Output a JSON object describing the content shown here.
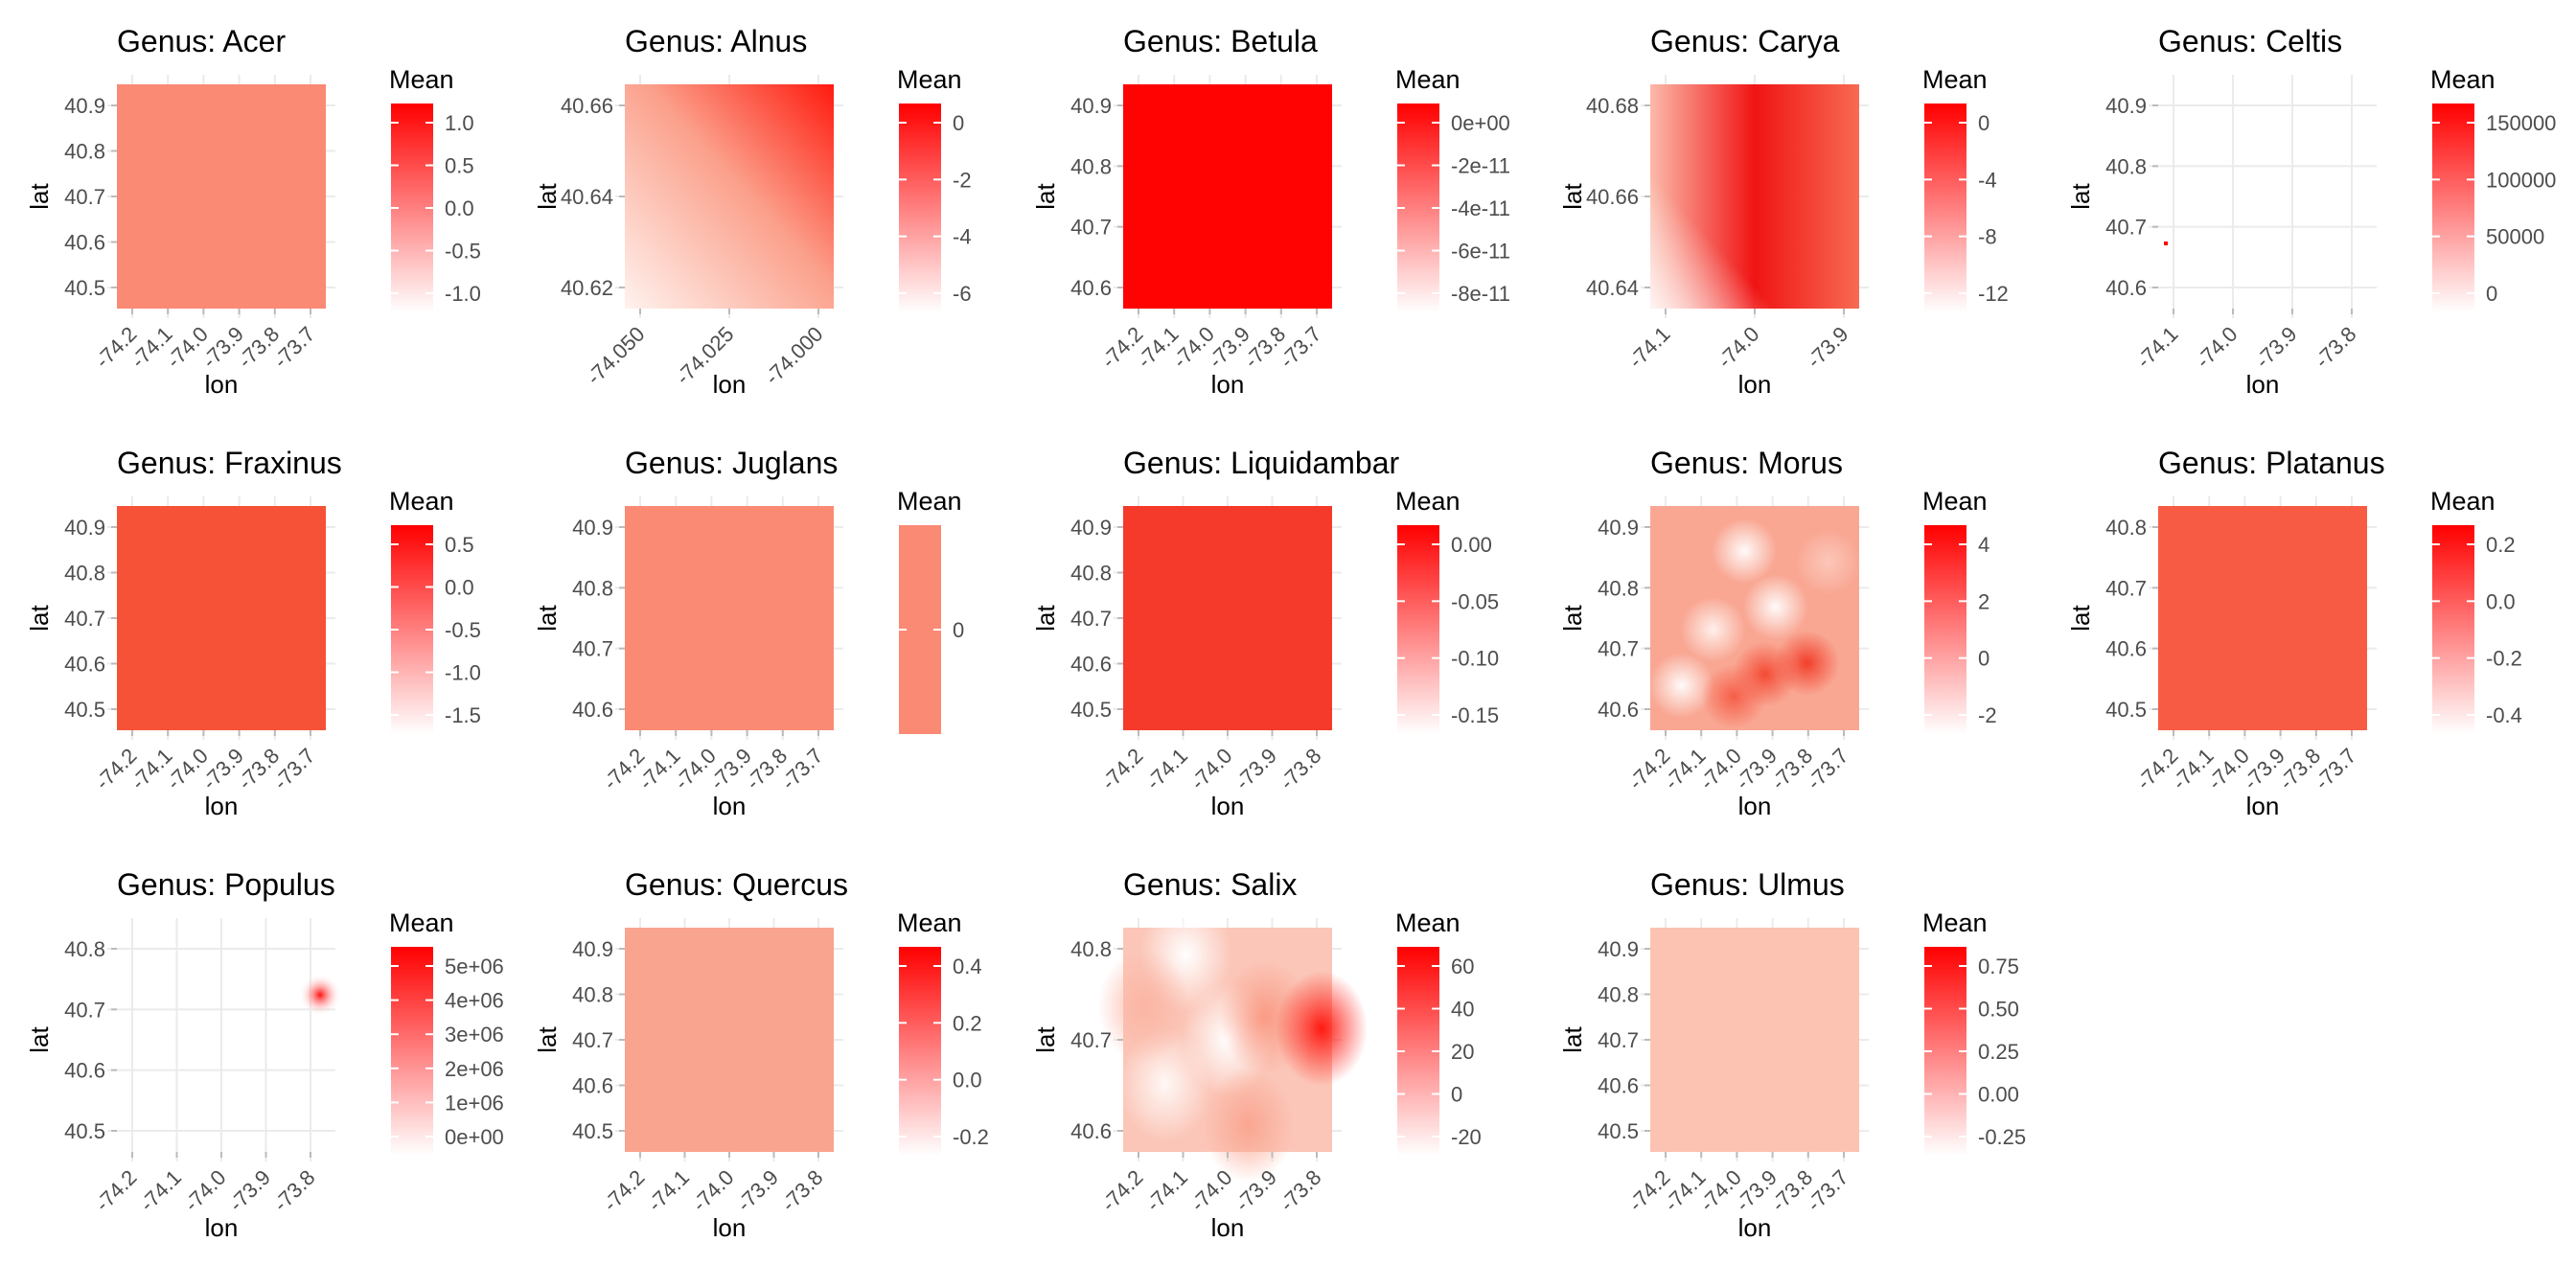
{
  "figure": {
    "ncol": 5,
    "nrow": 3
  },
  "chart_data": [
    {
      "type": "heatmap",
      "title": "Genus: Acer",
      "xlabel": "lon",
      "ylabel": "lat",
      "x_ticks": [
        "-74.2",
        "-74.1",
        "-74.0",
        "-73.9",
        "-73.8",
        "-73.7"
      ],
      "y_ticks": [
        "40.5",
        "40.6",
        "40.7",
        "40.8",
        "40.9"
      ],
      "legend": {
        "title": "Mean",
        "ticks": [
          "1.0",
          "0.5",
          "0.0",
          "-0.5",
          "-1.0"
        ],
        "low_color": "#FFFFFF",
        "high_color": "#FF0000"
      },
      "fill": {
        "kind": "uniform",
        "color": "#FA8A74"
      }
    },
    {
      "type": "heatmap",
      "title": "Genus: Alnus",
      "xlabel": "lon",
      "ylabel": "lat",
      "x_ticks": [
        "-74.050",
        "-74.025",
        "-74.000"
      ],
      "y_ticks": [
        "40.62",
        "40.64",
        "40.66"
      ],
      "legend": {
        "title": "Mean",
        "ticks": [
          "0",
          "-2",
          "-4",
          "-6"
        ],
        "low_color": "#FFFFFF",
        "high_color": "#FF0000"
      },
      "fill": {
        "kind": "diagonal",
        "low_color": "#FFF2EE",
        "high_color": "#FF1A0E"
      }
    },
    {
      "type": "heatmap",
      "title": "Genus: Betula",
      "xlabel": "lon",
      "ylabel": "lat",
      "x_ticks": [
        "-74.2",
        "-74.1",
        "-74.0",
        "-73.9",
        "-73.8",
        "-73.7"
      ],
      "y_ticks": [
        "40.6",
        "40.7",
        "40.8",
        "40.9"
      ],
      "legend": {
        "title": "Mean",
        "ticks": [
          "0e+00",
          "-2e-11",
          "-4e-11",
          "-6e-11",
          "-8e-11"
        ],
        "low_color": "#FFFFFF",
        "high_color": "#FF0000"
      },
      "fill": {
        "kind": "uniform",
        "color": "#FF0303"
      }
    },
    {
      "type": "heatmap",
      "title": "Genus: Carya",
      "xlabel": "lon",
      "ylabel": "lat",
      "x_ticks": [
        "-74.1",
        "-74.0",
        "-73.9"
      ],
      "y_ticks": [
        "40.64",
        "40.66",
        "40.68"
      ],
      "legend": {
        "title": "Mean",
        "ticks": [
          "0",
          "-4",
          "-8",
          "-12"
        ],
        "low_color": "#FFFFFF",
        "high_color": "#FF0000"
      },
      "fill": {
        "kind": "ridge",
        "low_color": "#FBBAAA",
        "high_color": "#F01414"
      }
    },
    {
      "type": "heatmap",
      "title": "Genus: Celtis",
      "xlabel": "lon",
      "ylabel": "lat",
      "x_ticks": [
        "-74.1",
        "-74.0",
        "-73.9",
        "-73.8"
      ],
      "y_ticks": [
        "40.6",
        "40.7",
        "40.8",
        "40.9"
      ],
      "legend": {
        "title": "Mean",
        "ticks": [
          "150000",
          "100000",
          "50000",
          "0"
        ],
        "low_color": "#FFFFFF",
        "high_color": "#FF0000"
      },
      "fill": {
        "kind": "empty",
        "color": "#FFFFFF"
      }
    },
    {
      "type": "heatmap",
      "title": "Genus: Fraxinus",
      "xlabel": "lon",
      "ylabel": "lat",
      "x_ticks": [
        "-74.2",
        "-74.1",
        "-74.0",
        "-73.9",
        "-73.8",
        "-73.7"
      ],
      "y_ticks": [
        "40.5",
        "40.6",
        "40.7",
        "40.8",
        "40.9"
      ],
      "legend": {
        "title": "Mean",
        "ticks": [
          "0.5",
          "0.0",
          "-0.5",
          "-1.0",
          "-1.5"
        ],
        "low_color": "#FFFFFF",
        "high_color": "#FF0000"
      },
      "fill": {
        "kind": "uniform",
        "color": "#F65238"
      }
    },
    {
      "type": "heatmap",
      "title": "Genus: Juglans",
      "xlabel": "lon",
      "ylabel": "lat",
      "x_ticks": [
        "-74.2",
        "-74.1",
        "-74.0",
        "-73.9",
        "-73.8",
        "-73.7"
      ],
      "y_ticks": [
        "40.6",
        "40.7",
        "40.8",
        "40.9"
      ],
      "legend": {
        "title": "Mean",
        "ticks": [
          "0"
        ],
        "low_color": "#FA8A74",
        "high_color": "#FA8A74"
      },
      "fill": {
        "kind": "uniform",
        "color": "#FA8A74"
      }
    },
    {
      "type": "heatmap",
      "title": "Genus: Liquidambar",
      "xlabel": "lon",
      "ylabel": "lat",
      "x_ticks": [
        "-74.2",
        "-74.1",
        "-74.0",
        "-73.9",
        "-73.8"
      ],
      "y_ticks": [
        "40.5",
        "40.6",
        "40.7",
        "40.8",
        "40.9"
      ],
      "legend": {
        "title": "Mean",
        "ticks": [
          "0.00",
          "-0.05",
          "-0.10",
          "-0.15"
        ],
        "low_color": "#FFFFFF",
        "high_color": "#FF0000"
      },
      "fill": {
        "kind": "uniform",
        "color": "#F5392A"
      }
    },
    {
      "type": "heatmap",
      "title": "Genus: Morus",
      "xlabel": "lon",
      "ylabel": "lat",
      "x_ticks": [
        "-74.2",
        "-74.1",
        "-74.0",
        "-73.9",
        "-73.8",
        "-73.7"
      ],
      "y_ticks": [
        "40.6",
        "40.7",
        "40.8",
        "40.9"
      ],
      "legend": {
        "title": "Mean",
        "ticks": [
          "4",
          "2",
          "0",
          "-2"
        ],
        "low_color": "#FFFFFF",
        "high_color": "#FF0000"
      },
      "fill": {
        "kind": "blotchy",
        "color": "#F9A793"
      }
    },
    {
      "type": "heatmap",
      "title": "Genus: Platanus",
      "xlabel": "lon",
      "ylabel": "lat",
      "x_ticks": [
        "-74.2",
        "-74.1",
        "-74.0",
        "-73.9",
        "-73.8",
        "-73.7"
      ],
      "y_ticks": [
        "40.5",
        "40.6",
        "40.7",
        "40.8"
      ],
      "legend": {
        "title": "Mean",
        "ticks": [
          "0.2",
          "0.0",
          "-0.2",
          "-0.4"
        ],
        "low_color": "#FFFFFF",
        "high_color": "#FF0000"
      },
      "fill": {
        "kind": "uniform",
        "color": "#F75B44"
      }
    },
    {
      "type": "heatmap",
      "title": "Genus: Populus",
      "xlabel": "lon",
      "ylabel": "lat",
      "x_ticks": [
        "-74.2",
        "-74.1",
        "-74.0",
        "-73.9",
        "-73.8"
      ],
      "y_ticks": [
        "40.5",
        "40.6",
        "40.7",
        "40.8"
      ],
      "legend": {
        "title": "Mean",
        "ticks": [
          "5e+06",
          "4e+06",
          "3e+06",
          "2e+06",
          "1e+06",
          "0e+00"
        ],
        "low_color": "#FFFFFF",
        "high_color": "#FF0000"
      },
      "fill": {
        "kind": "hotspot",
        "color": "#FF1010"
      }
    },
    {
      "type": "heatmap",
      "title": "Genus: Quercus",
      "xlabel": "lon",
      "ylabel": "lat",
      "x_ticks": [
        "-74.2",
        "-74.1",
        "-74.0",
        "-73.9",
        "-73.8"
      ],
      "y_ticks": [
        "40.5",
        "40.6",
        "40.7",
        "40.8",
        "40.9"
      ],
      "legend": {
        "title": "Mean",
        "ticks": [
          "0.4",
          "0.2",
          "0.0",
          "-0.2"
        ],
        "low_color": "#FFFFFF",
        "high_color": "#FF0000"
      },
      "fill": {
        "kind": "uniform",
        "color": "#F9A48E"
      }
    },
    {
      "type": "heatmap",
      "title": "Genus: Salix",
      "xlabel": "lon",
      "ylabel": "lat",
      "x_ticks": [
        "-74.2",
        "-74.1",
        "-74.0",
        "-73.9",
        "-73.8"
      ],
      "y_ticks": [
        "40.6",
        "40.7",
        "40.8"
      ],
      "legend": {
        "title": "Mean",
        "ticks": [
          "60",
          "40",
          "20",
          "0",
          "-20"
        ],
        "low_color": "#FFFFFF",
        "high_color": "#FF0000"
      },
      "fill": {
        "kind": "wavy",
        "color": "#FBC6B8"
      }
    },
    {
      "type": "heatmap",
      "title": "Genus: Ulmus",
      "xlabel": "lon",
      "ylabel": "lat",
      "x_ticks": [
        "-74.2",
        "-74.1",
        "-74.0",
        "-73.9",
        "-73.8",
        "-73.7"
      ],
      "y_ticks": [
        "40.5",
        "40.6",
        "40.7",
        "40.8",
        "40.9"
      ],
      "legend": {
        "title": "Mean",
        "ticks": [
          "0.75",
          "0.50",
          "0.25",
          "0.00",
          "-0.25"
        ],
        "low_color": "#FFFFFF",
        "high_color": "#FF0000"
      },
      "fill": {
        "kind": "uniform",
        "color": "#FCC3B2"
      }
    }
  ]
}
